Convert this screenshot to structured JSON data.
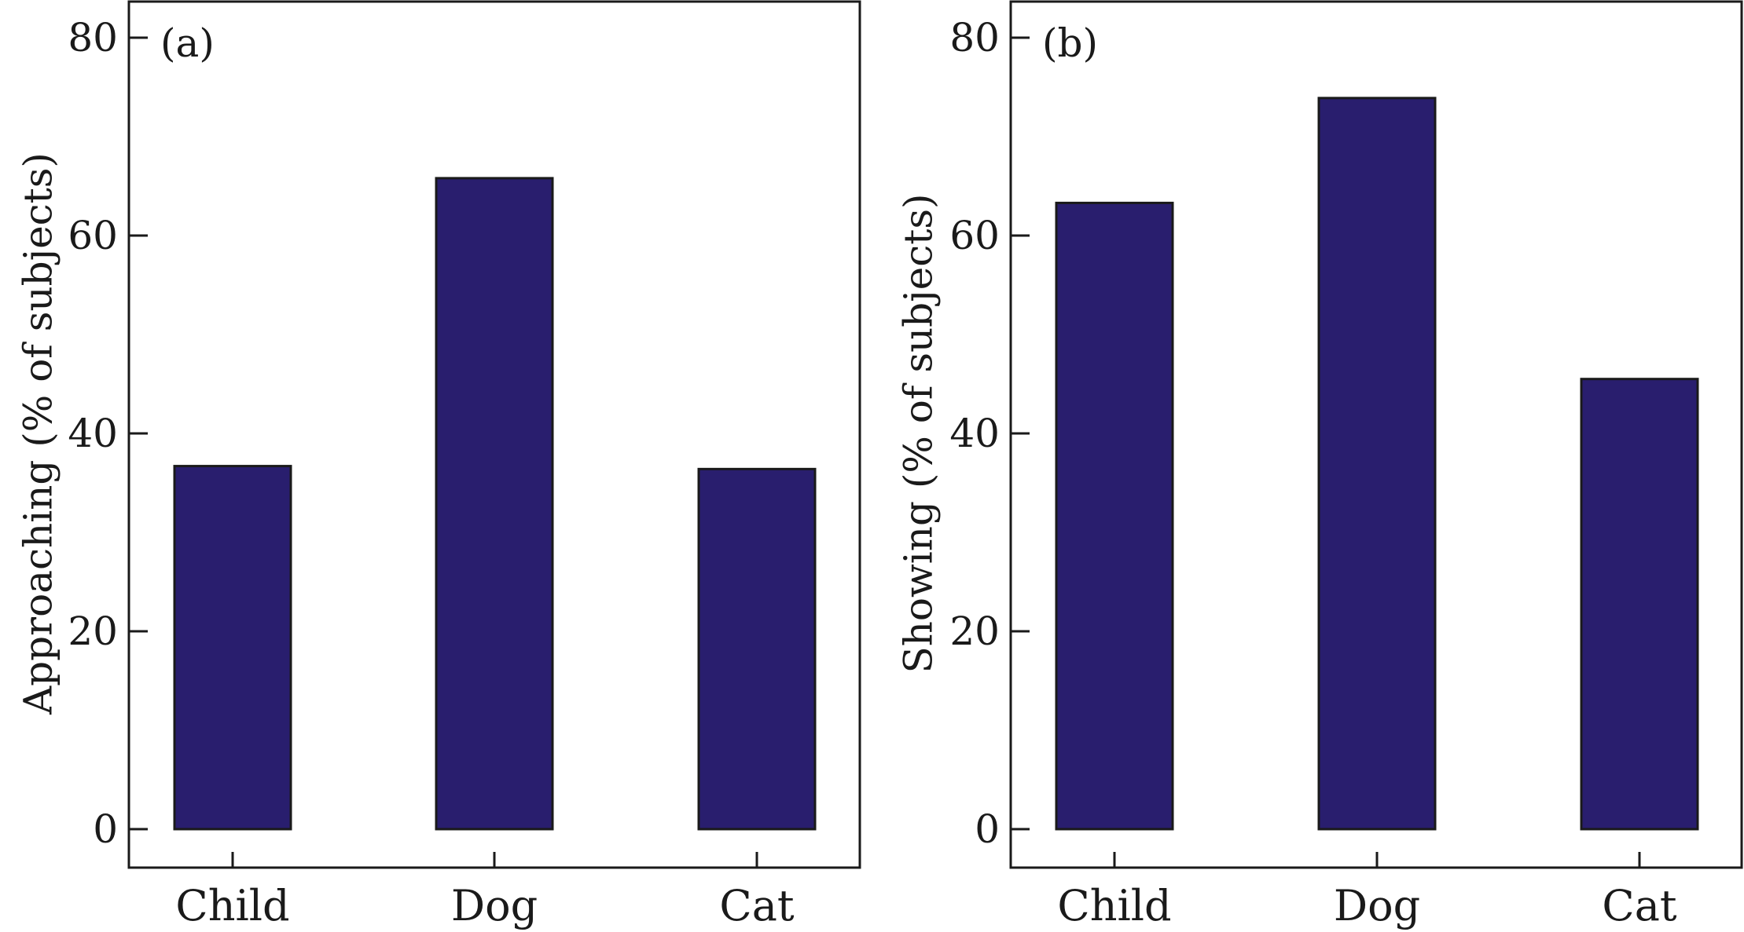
{
  "chart_data": [
    {
      "type": "bar",
      "panel_label": "(a)",
      "categories": [
        "Child",
        "Dog",
        "Cat"
      ],
      "values": [
        36.7,
        65.8,
        36.4
      ],
      "ylabel": "Approaching (% of subjects)",
      "xlabel": "",
      "ylim": [
        0,
        84
      ],
      "yticks": [
        0,
        20,
        40,
        60,
        80
      ],
      "grid": false,
      "bar_color": "#291e6e"
    },
    {
      "type": "bar",
      "panel_label": "(b)",
      "categories": [
        "Child",
        "Dog",
        "Cat"
      ],
      "values": [
        63.3,
        73.9,
        45.5
      ],
      "ylabel": "Showing (% of subjects)",
      "xlabel": "",
      "ylim": [
        0,
        84
      ],
      "yticks": [
        0,
        20,
        40,
        60,
        80
      ],
      "grid": false,
      "bar_color": "#291e6e"
    }
  ]
}
